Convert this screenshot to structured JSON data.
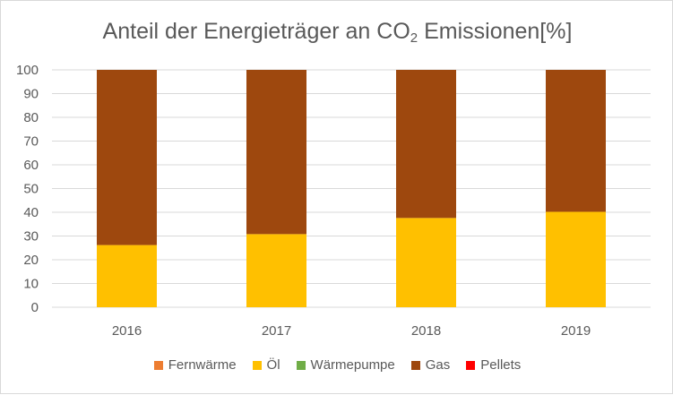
{
  "chart_data": {
    "type": "bar",
    "stacked": true,
    "title": {
      "main": "Anteil der Energieträger an CO",
      "subscript": "2",
      "rest": " Emissionen[%]"
    },
    "categories": [
      "2016",
      "2017",
      "2018",
      "2019"
    ],
    "ylim": [
      0,
      100
    ],
    "yticks": [
      0,
      10,
      20,
      30,
      40,
      50,
      60,
      70,
      80,
      90,
      100
    ],
    "grid": true,
    "legend_position": "bottom",
    "series": [
      {
        "name": "Fernwärme",
        "color": "#ed7d31",
        "values": [
          0,
          0,
          0,
          0
        ]
      },
      {
        "name": "Öl",
        "color": "#ffc000",
        "values": [
          26.2,
          30.8,
          37.6,
          40.2
        ]
      },
      {
        "name": "Wärmepumpe",
        "color": "#70ad47",
        "values": [
          0,
          0,
          0,
          0
        ]
      },
      {
        "name": "Gas",
        "color": "#9e480e",
        "values": [
          73.8,
          69.2,
          62.4,
          59.8
        ]
      },
      {
        "name": "Pellets",
        "color": "#ff0000",
        "values": [
          0,
          0,
          0,
          0
        ]
      }
    ]
  }
}
